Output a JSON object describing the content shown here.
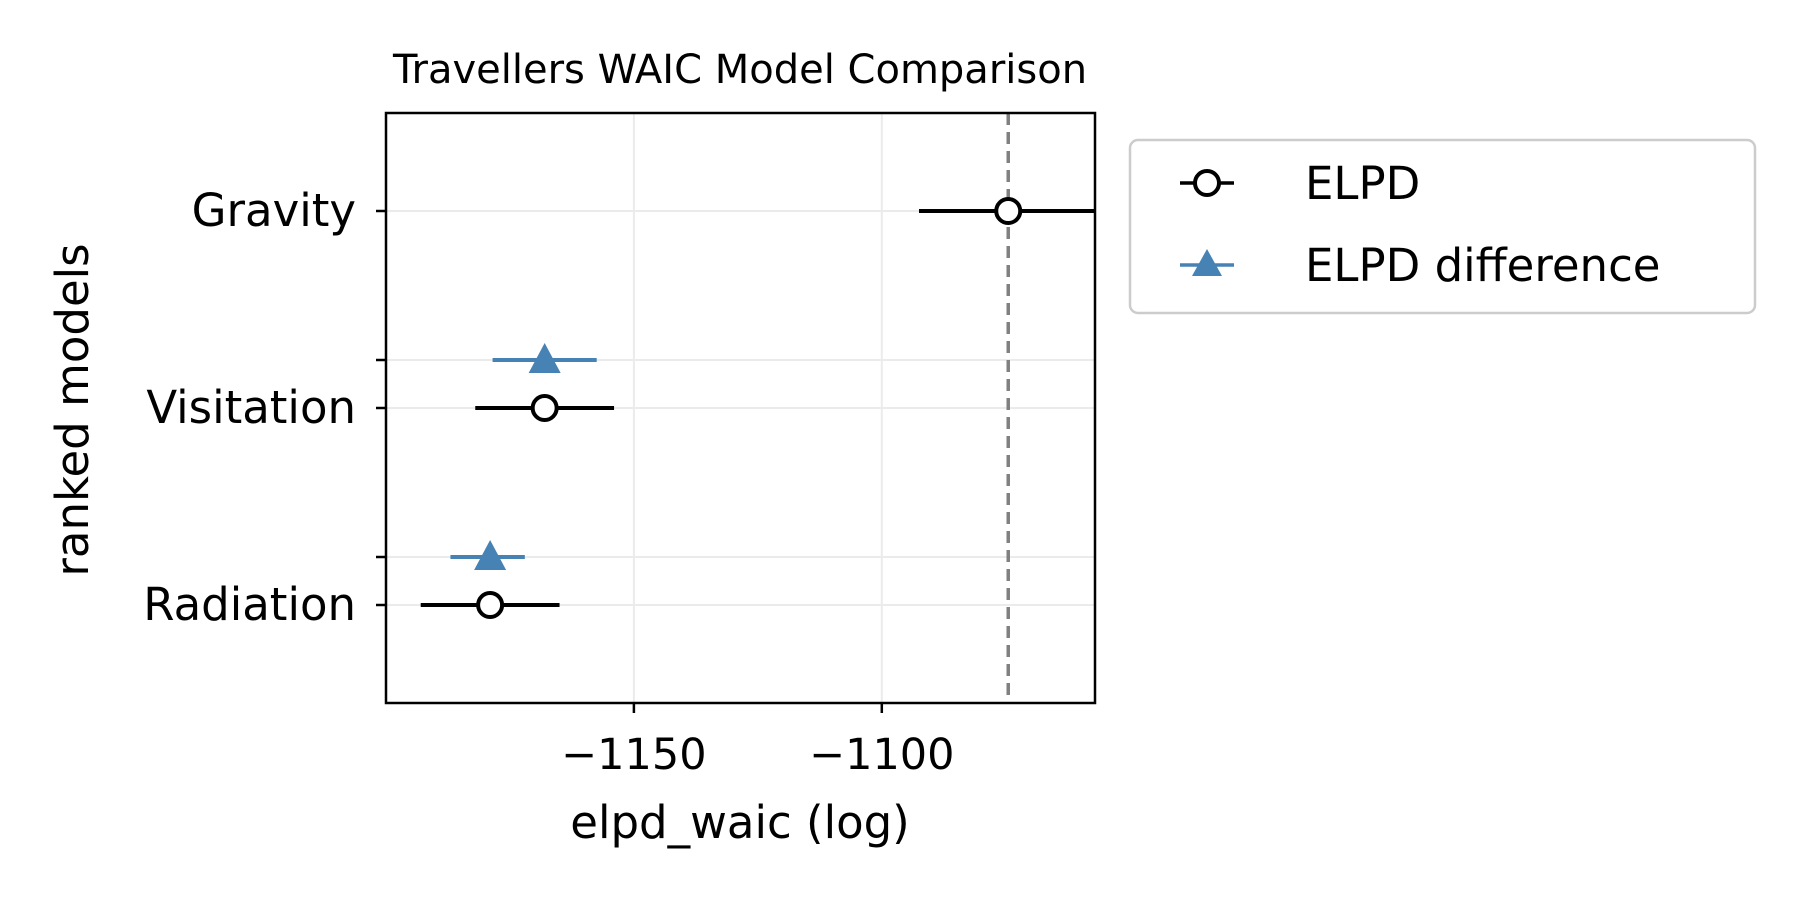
{
  "chart_data": {
    "type": "scatter",
    "title": "Travellers WAIC Model Comparison",
    "xlabel": "elpd_waic (log)",
    "ylabel": "ranked models",
    "xlim": [
      -1200,
      -1057
    ],
    "xticks": [
      -1150,
      -1100
    ],
    "xtick_labels": [
      "−1150",
      "−1100"
    ],
    "grid": true,
    "legend_position": "outside right",
    "models": [
      "Gravity",
      "Visitation",
      "Radiation"
    ],
    "series": [
      {
        "name": "ELPD",
        "marker": "open-circle",
        "color": "#000000",
        "values": [
          -1074.5,
          -1168,
          -1179
        ],
        "err_low": [
          -1092.5,
          -1182,
          -1193
        ],
        "err_high": [
          -1057,
          -1154,
          -1165
        ]
      },
      {
        "name": "ELPD difference",
        "marker": "triangle",
        "color": "#4682b4",
        "models": [
          "Visitation",
          "Radiation"
        ],
        "values": [
          -1168,
          -1179
        ],
        "err_low": [
          -1178.5,
          -1187
        ],
        "err_high": [
          -1157.5,
          -1172
        ]
      }
    ],
    "reference_line": {
      "value": -1074.5,
      "style": "dashed",
      "color": "#808080"
    }
  }
}
